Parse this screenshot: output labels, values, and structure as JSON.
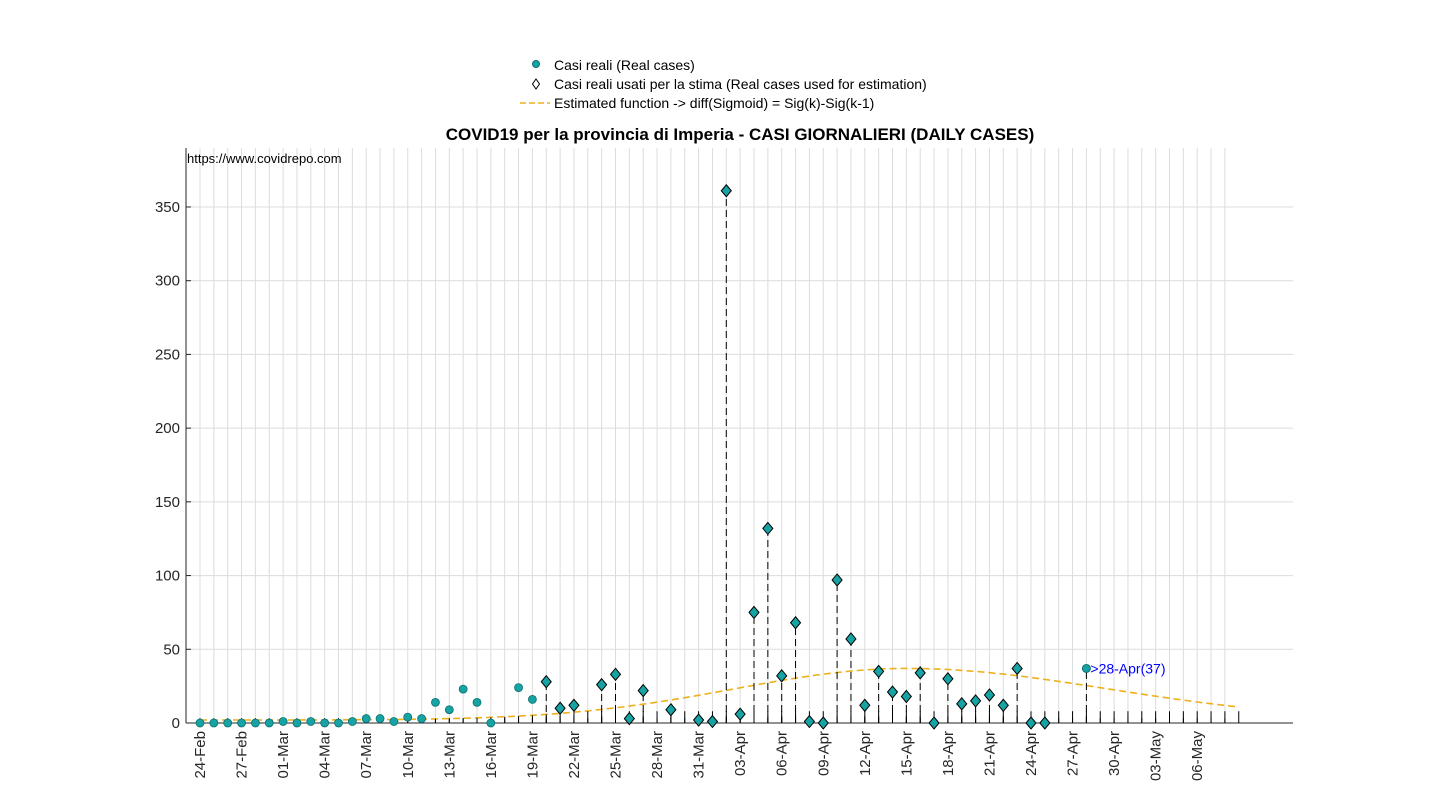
{
  "chart_data": {
    "type": "scatter",
    "title": "COVID19 per la provincia di Imperia - CASI GIORNALIERI (DAILY CASES)",
    "watermark": "https://www.covidrepo.com",
    "xlabel": "",
    "ylabel": "",
    "ylim": [
      0,
      390
    ],
    "yticks": [
      0,
      50,
      100,
      150,
      200,
      250,
      300,
      350
    ],
    "grid": true,
    "legend_position": "top-center",
    "legend": [
      {
        "label": "Casi reali (Real cases)",
        "marker": "dot",
        "color": "#17a3a3"
      },
      {
        "label": "Casi reali usati per la stima (Real cases used for estimation)",
        "marker": "diamond",
        "color": "#000000"
      },
      {
        "label": "Estimated function -> diff(Sigmoid) = Sig(k)-Sig(k-1)",
        "marker": "dash-line",
        "color": "#edb120"
      }
    ],
    "x_start_date": "24-Feb",
    "x_days": 75,
    "xtick_labels": [
      "24-Feb",
      "27-Feb",
      "01-Mar",
      "04-Mar",
      "07-Mar",
      "10-Mar",
      "13-Mar",
      "16-Mar",
      "19-Mar",
      "22-Mar",
      "25-Mar",
      "28-Mar",
      "31-Mar",
      "03-Apr",
      "06-Apr",
      "09-Apr",
      "12-Apr",
      "15-Apr",
      "18-Apr",
      "21-Apr",
      "24-Apr",
      "27-Apr",
      "30-Apr",
      "03-May",
      "06-May"
    ],
    "xtick_step_days": 3,
    "series": [
      {
        "name": "Casi reali (Real cases)",
        "dates": [
          "24-Feb",
          "25-Feb",
          "26-Feb",
          "27-Feb",
          "28-Feb",
          "29-Feb",
          "01-Mar",
          "02-Mar",
          "03-Mar",
          "04-Mar",
          "05-Mar",
          "06-Mar",
          "07-Mar",
          "08-Mar",
          "09-Mar",
          "10-Mar",
          "11-Mar",
          "12-Mar",
          "13-Mar",
          "14-Mar",
          "15-Mar",
          "16-Mar",
          "18-Mar",
          "19-Mar"
        ],
        "values": [
          0,
          0,
          0,
          0,
          0,
          0,
          1,
          0,
          1,
          0,
          0,
          1,
          3,
          3,
          1,
          4,
          3,
          14,
          9,
          23,
          14,
          0,
          24,
          16
        ]
      },
      {
        "name": "Casi reali usati per la stima (Real cases used for estimation)",
        "dates": [
          "20-Mar",
          "21-Mar",
          "22-Mar",
          "24-Mar",
          "25-Mar",
          "26-Mar",
          "27-Mar",
          "29-Mar",
          "31-Mar",
          "01-Apr",
          "02-Apr",
          "03-Apr",
          "04-Apr",
          "05-Apr",
          "06-Apr",
          "07-Apr",
          "08-Apr",
          "09-Apr",
          "10-Apr",
          "11-Apr",
          "12-Apr",
          "13-Apr",
          "14-Apr",
          "15-Apr",
          "16-Apr",
          "17-Apr",
          "18-Apr",
          "19-Apr",
          "20-Apr",
          "21-Apr",
          "22-Apr",
          "23-Apr",
          "24-Apr",
          "25-Apr"
        ],
        "values": [
          28,
          10,
          12,
          26,
          33,
          3,
          22,
          9,
          2,
          1,
          361,
          6,
          75,
          132,
          32,
          68,
          1,
          0,
          97,
          57,
          12,
          35,
          21,
          18,
          34,
          0,
          30,
          13,
          15,
          19,
          12,
          37,
          0,
          0
        ]
      }
    ],
    "fit": {
      "name": "Estimated function -> diff(Sigmoid) = Sig(k)-Sig(k-1)",
      "peak_value": 37,
      "peak_date": "15-Apr",
      "start_value": 2,
      "end_value": 21,
      "end_date": "09-May"
    },
    "annotation": {
      "text": ">28-Apr(37)",
      "date": "28-Apr",
      "value": 37
    }
  }
}
